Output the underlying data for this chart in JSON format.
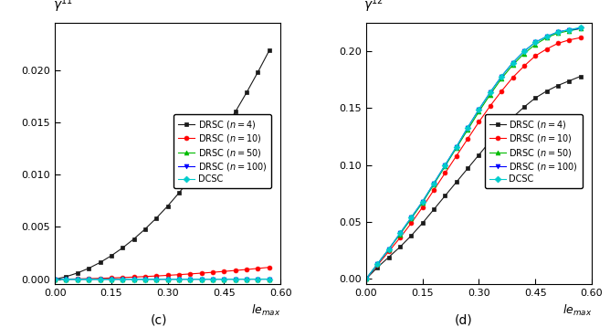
{
  "label_c": "(c)",
  "label_d": "(d)",
  "xlim": [
    0.0,
    0.6
  ],
  "left_ylim": [
    -0.0005,
    0.0245
  ],
  "right_ylim": [
    -0.005,
    0.225
  ],
  "x_ticks": [
    0.0,
    0.15,
    0.3,
    0.45,
    0.6
  ],
  "left_y_ticks": [
    0.0,
    0.005,
    0.01,
    0.015,
    0.02
  ],
  "right_y_ticks": [
    0.0,
    0.05,
    0.1,
    0.15,
    0.2
  ],
  "x_data": [
    0.0,
    0.03,
    0.06,
    0.09,
    0.12,
    0.15,
    0.18,
    0.21,
    0.24,
    0.27,
    0.3,
    0.33,
    0.36,
    0.39,
    0.42,
    0.45,
    0.48,
    0.51,
    0.54,
    0.57
  ],
  "left_n4": [
    0.0,
    0.00025,
    0.0006,
    0.00105,
    0.0016,
    0.00225,
    0.003,
    0.00385,
    0.0048,
    0.00585,
    0.007,
    0.00825,
    0.0096,
    0.01105,
    0.0126,
    0.01425,
    0.016,
    0.01785,
    0.0198,
    0.02185
  ],
  "left_n10": [
    0.0,
    1.5e-05,
    3.5e-05,
    6e-05,
    9e-05,
    0.000125,
    0.000165,
    0.00021,
    0.00026,
    0.000315,
    0.000375,
    0.00044,
    0.00051,
    0.000585,
    0.000665,
    0.00075,
    0.00084,
    0.000935,
    0.001035,
    0.00114
  ],
  "left_n50": [
    0.0,
    1e-06,
    2e-06,
    3e-06,
    4e-06,
    5e-06,
    6e-06,
    7e-06,
    8e-06,
    9e-06,
    1e-05,
    1.1e-05,
    1.2e-05,
    1.3e-05,
    1.4e-05,
    1.5e-05,
    1.6e-05,
    1.7e-05,
    1.8e-05,
    1.9e-05
  ],
  "left_n100": [
    0.0,
    5e-07,
    1e-06,
    1.5e-06,
    2e-06,
    2.5e-06,
    3e-06,
    3.5e-06,
    4e-06,
    4.5e-06,
    5e-06,
    5.5e-06,
    6e-06,
    6.5e-06,
    7e-06,
    7.5e-06,
    8e-06,
    8.5e-06,
    9e-06,
    9.5e-06
  ],
  "left_dcsc": [
    0.0,
    1e-06,
    2e-06,
    3e-06,
    4e-06,
    5e-06,
    6e-06,
    7e-06,
    8e-06,
    9e-06,
    1e-05,
    1.1e-05,
    1.2e-05,
    1.3e-05,
    1.4e-05,
    1.5e-05,
    1.6e-05,
    1.7e-05,
    1.8e-05,
    1.9e-05
  ],
  "right_n4": [
    0.0,
    0.01,
    0.019,
    0.028,
    0.038,
    0.049,
    0.061,
    0.073,
    0.085,
    0.097,
    0.109,
    0.121,
    0.132,
    0.142,
    0.151,
    0.159,
    0.165,
    0.17,
    0.174,
    0.178
  ],
  "right_n10": [
    0.0,
    0.012,
    0.024,
    0.036,
    0.049,
    0.063,
    0.078,
    0.093,
    0.108,
    0.123,
    0.138,
    0.152,
    0.165,
    0.177,
    0.187,
    0.196,
    0.202,
    0.207,
    0.21,
    0.212
  ],
  "right_n50": [
    0.0,
    0.013,
    0.026,
    0.039,
    0.053,
    0.067,
    0.083,
    0.099,
    0.115,
    0.131,
    0.147,
    0.162,
    0.176,
    0.188,
    0.198,
    0.206,
    0.212,
    0.216,
    0.218,
    0.22
  ],
  "right_n100": [
    0.0,
    0.013,
    0.026,
    0.04,
    0.054,
    0.068,
    0.084,
    0.1,
    0.116,
    0.133,
    0.149,
    0.164,
    0.178,
    0.19,
    0.2,
    0.208,
    0.213,
    0.217,
    0.219,
    0.22
  ],
  "right_dcsc": [
    0.0,
    0.013,
    0.026,
    0.04,
    0.054,
    0.068,
    0.084,
    0.1,
    0.116,
    0.133,
    0.149,
    0.164,
    0.178,
    0.19,
    0.2,
    0.208,
    0.213,
    0.217,
    0.219,
    0.221
  ],
  "colors": {
    "n4": "#1a1a1a",
    "n10": "#ff0000",
    "n50": "#00bb00",
    "n100": "#0000ff",
    "dcsc": "#00cccc"
  },
  "markers": {
    "n4": "s",
    "n10": "o",
    "n50": "^",
    "n100": "v",
    "dcsc": "D"
  },
  "legend_labels": {
    "n4": "DRSC ($n = 4$)",
    "n10": "DRSC ($n = 10$)",
    "n50": "DRSC ($n = 50$)",
    "n100": "DRSC ($n = 100$)",
    "dcsc": "DCSC"
  }
}
